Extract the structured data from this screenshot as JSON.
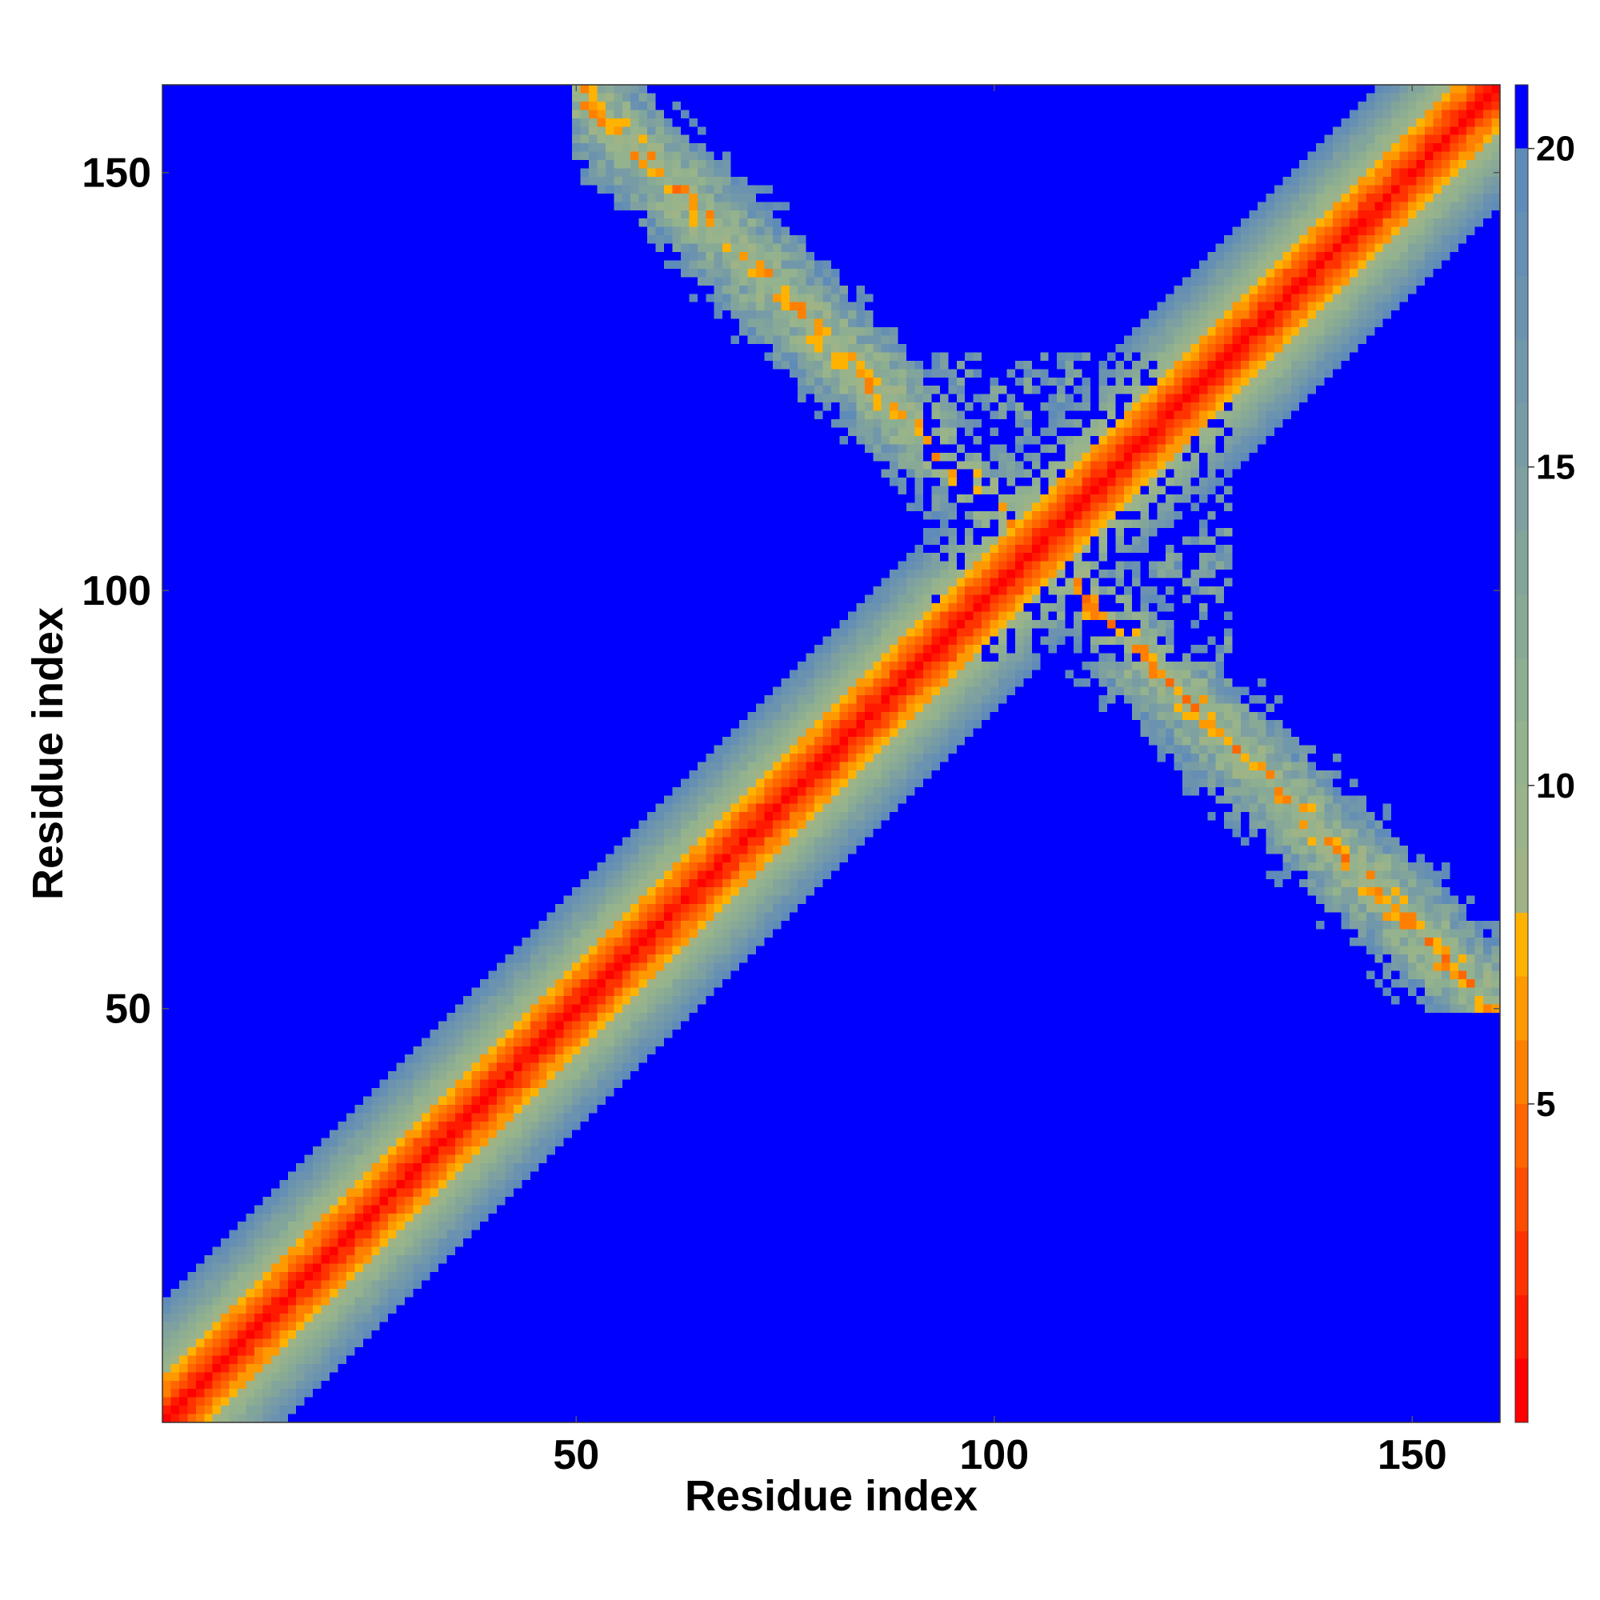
{
  "chart_data": {
    "type": "heatmap",
    "title": "",
    "xlabel": "Residue index",
    "ylabel": "Residue index",
    "n_residues": 160,
    "xlim": [
      1,
      160
    ],
    "ylim": [
      1,
      160
    ],
    "x_ticks": [
      50,
      100,
      150
    ],
    "y_ticks": [
      50,
      100,
      150
    ],
    "colorbar": {
      "range": [
        0,
        21
      ],
      "ticks": [
        5,
        10,
        15,
        20
      ],
      "levels": [
        {
          "max": 1,
          "color": "#ff0000"
        },
        {
          "max": 2,
          "color": "#ff1a00"
        },
        {
          "max": 3,
          "color": "#ff3300"
        },
        {
          "max": 4,
          "color": "#ff4d00"
        },
        {
          "max": 5,
          "color": "#ff6600"
        },
        {
          "max": 6,
          "color": "#ff8000"
        },
        {
          "max": 7,
          "color": "#ff9900"
        },
        {
          "max": 8,
          "color": "#ffb300"
        },
        {
          "max": 9,
          "color": "#9fb386"
        },
        {
          "max": 10,
          "color": "#99b48a"
        },
        {
          "max": 11,
          "color": "#94b28d"
        },
        {
          "max": 12,
          "color": "#8eae91"
        },
        {
          "max": 13,
          "color": "#88a996"
        },
        {
          "max": 14,
          "color": "#82a59b"
        },
        {
          "max": 15,
          "color": "#7ea0a0"
        },
        {
          "max": 16,
          "color": "#779ca6"
        },
        {
          "max": 17,
          "color": "#7198aa"
        },
        {
          "max": 18,
          "color": "#6b93af"
        },
        {
          "max": 19,
          "color": "#658fb3"
        },
        {
          "max": 20,
          "color": "#5f8bb8"
        },
        {
          "max": 21,
          "color": "#0000ff"
        }
      ]
    },
    "diagonal_band": {
      "description_values": {
        "center": 0.5,
        "slope_per_residue": 1.35,
        "cutoff": 21
      }
    },
    "anti_diagonal_contact": {
      "i_start": 50,
      "j_start": 160,
      "i_end": 160,
      "j_end": 50,
      "min_distance": 5.5,
      "width": 7
    },
    "noise_region": {
      "i_range": [
        92,
        128
      ],
      "j_range": [
        92,
        128
      ]
    }
  }
}
